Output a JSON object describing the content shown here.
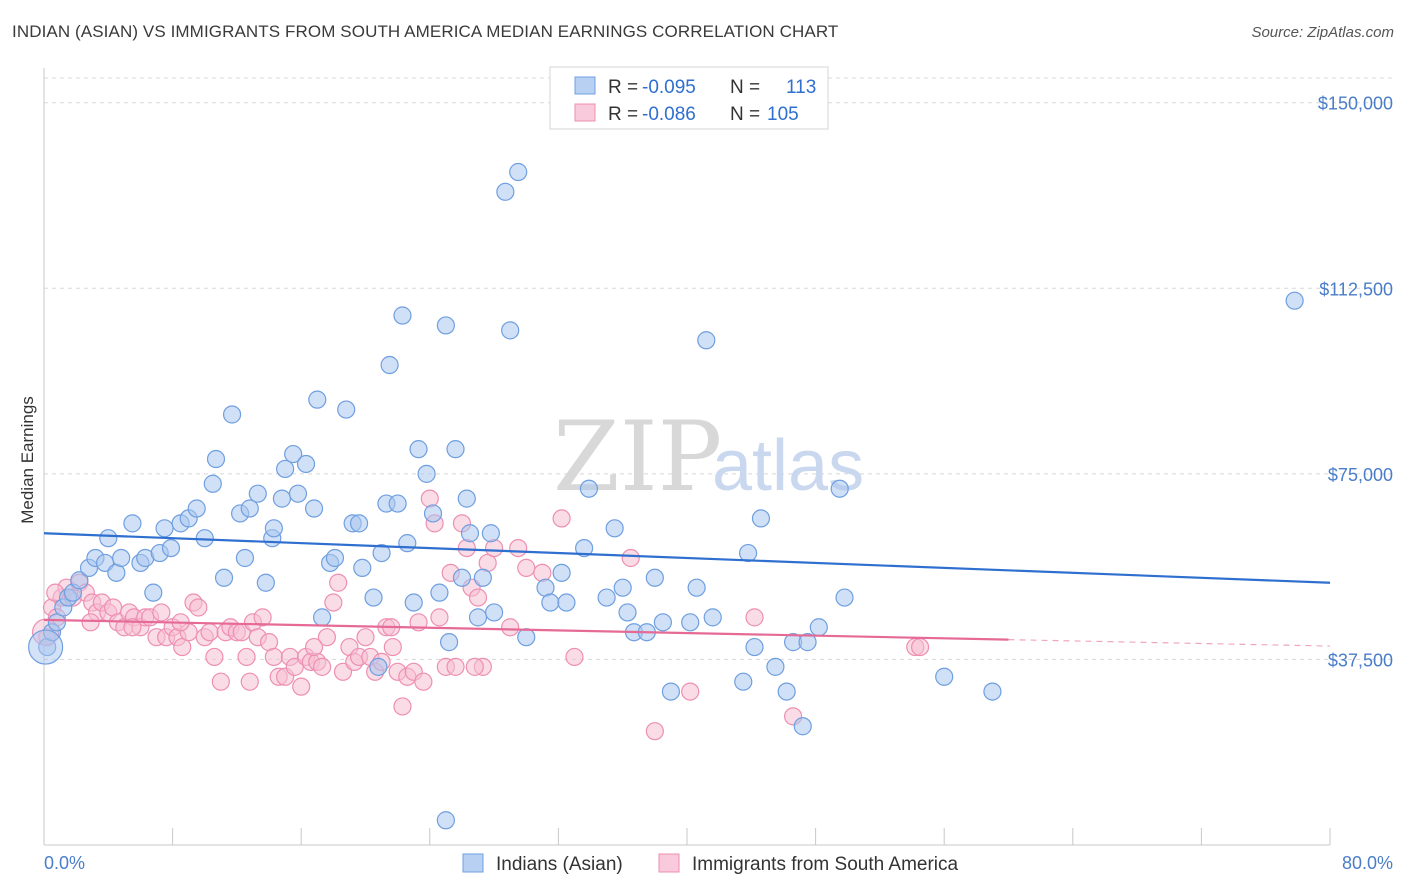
{
  "title": "INDIAN (ASIAN) VS IMMIGRANTS FROM SOUTH AMERICA MEDIAN EARNINGS CORRELATION CHART",
  "source": "Source: ZipAtlas.com",
  "watermark": {
    "zip": "ZIP",
    "atlas": "atlas"
  },
  "colors": {
    "blue_fill": "#a9c6ef",
    "blue_stroke": "#6f9fe0",
    "blue_line": "#2f6fcf",
    "pink_fill": "#f6bfd2",
    "pink_stroke": "#ee8fb2",
    "pink_line": "#e56a96",
    "grid": "#d8d8d8",
    "axis_text": "#4a7dc9"
  },
  "legend": {
    "rows": [
      {
        "r_label": "R =",
        "r_value": "-0.095",
        "n_label": "N =",
        "n_value": "113"
      },
      {
        "r_label": "R =",
        "r_value": "-0.086",
        "n_label": "N =",
        "n_value": "105"
      }
    ]
  },
  "chart_data": {
    "type": "scatter",
    "title": "INDIAN (ASIAN) VS IMMIGRANTS FROM SOUTH AMERICA MEDIAN EARNINGS CORRELATION CHART",
    "xlabel": "",
    "ylabel": "Median Earnings",
    "xlim": [
      0,
      80
    ],
    "ylim": [
      0,
      155000
    ],
    "x_tick_labels": [
      "0.0%",
      "80.0%"
    ],
    "y_ticks": [
      37500,
      75000,
      112500,
      150000
    ],
    "y_tick_labels": [
      "$37,500",
      "$75,000",
      "$112,500",
      "$150,000"
    ],
    "grid": true,
    "legend_position": "top-center",
    "series": [
      {
        "name": "Indians (Asian)",
        "color": "#6f9fe0",
        "trend": {
          "x": [
            0,
            80
          ],
          "y": [
            63000,
            53000
          ]
        },
        "points": [
          [
            0.2,
            40000
          ],
          [
            0.5,
            43000
          ],
          [
            0.8,
            45000
          ],
          [
            1.2,
            48000
          ],
          [
            1.5,
            50000
          ],
          [
            1.8,
            51000
          ],
          [
            2.2,
            53500
          ],
          [
            2.8,
            56000
          ],
          [
            3.2,
            58000
          ],
          [
            3.8,
            57000
          ],
          [
            4.0,
            62000
          ],
          [
            4.5,
            55000
          ],
          [
            4.8,
            58000
          ],
          [
            5.5,
            65000
          ],
          [
            6.0,
            57000
          ],
          [
            6.3,
            58000
          ],
          [
            6.8,
            51000
          ],
          [
            7.2,
            59000
          ],
          [
            7.5,
            64000
          ],
          [
            7.9,
            60000
          ],
          [
            8.5,
            65000
          ],
          [
            9.0,
            66000
          ],
          [
            9.5,
            68000
          ],
          [
            10.0,
            62000
          ],
          [
            10.5,
            73000
          ],
          [
            10.7,
            78000
          ],
          [
            11.2,
            54000
          ],
          [
            11.7,
            87000
          ],
          [
            12.2,
            67000
          ],
          [
            12.5,
            58000
          ],
          [
            12.8,
            68000
          ],
          [
            13.3,
            71000
          ],
          [
            13.8,
            53000
          ],
          [
            14.2,
            62000
          ],
          [
            14.3,
            64000
          ],
          [
            14.8,
            70000
          ],
          [
            15.0,
            76000
          ],
          [
            15.5,
            79000
          ],
          [
            15.8,
            71000
          ],
          [
            16.3,
            77000
          ],
          [
            16.8,
            68000
          ],
          [
            17.0,
            90000
          ],
          [
            17.3,
            46000
          ],
          [
            17.8,
            57000
          ],
          [
            18.1,
            58000
          ],
          [
            18.8,
            88000
          ],
          [
            19.2,
            65000
          ],
          [
            19.6,
            65000
          ],
          [
            19.8,
            56000
          ],
          [
            20.5,
            50000
          ],
          [
            20.8,
            36000
          ],
          [
            21.0,
            59000
          ],
          [
            21.3,
            69000
          ],
          [
            21.5,
            97000
          ],
          [
            22.0,
            69000
          ],
          [
            22.3,
            107000
          ],
          [
            22.6,
            61000
          ],
          [
            23.0,
            49000
          ],
          [
            23.3,
            80000
          ],
          [
            23.8,
            75000
          ],
          [
            24.2,
            67000
          ],
          [
            24.6,
            51000
          ],
          [
            25.0,
            105000
          ],
          [
            25.2,
            41000
          ],
          [
            25.6,
            80000
          ],
          [
            26.0,
            54000
          ],
          [
            26.3,
            70000
          ],
          [
            26.5,
            63000
          ],
          [
            27.0,
            46000
          ],
          [
            27.3,
            54000
          ],
          [
            27.8,
            63000
          ],
          [
            28.0,
            47000
          ],
          [
            28.7,
            132000
          ],
          [
            29.0,
            104000
          ],
          [
            29.5,
            136000
          ],
          [
            30.0,
            42000
          ],
          [
            31.2,
            52000
          ],
          [
            31.5,
            49000
          ],
          [
            32.2,
            55000
          ],
          [
            32.5,
            49000
          ],
          [
            33.6,
            60000
          ],
          [
            33.9,
            72000
          ],
          [
            35.0,
            50000
          ],
          [
            35.5,
            64000
          ],
          [
            36.0,
            52000
          ],
          [
            36.3,
            47000
          ],
          [
            36.7,
            43000
          ],
          [
            37.5,
            43000
          ],
          [
            38.0,
            54000
          ],
          [
            38.5,
            45000
          ],
          [
            39.0,
            31000
          ],
          [
            40.2,
            45000
          ],
          [
            40.6,
            52000
          ],
          [
            41.2,
            102000
          ],
          [
            41.6,
            46000
          ],
          [
            43.5,
            33000
          ],
          [
            43.8,
            59000
          ],
          [
            44.2,
            40000
          ],
          [
            44.6,
            66000
          ],
          [
            45.5,
            36000
          ],
          [
            46.2,
            31000
          ],
          [
            46.6,
            41000
          ],
          [
            47.2,
            24000
          ],
          [
            47.5,
            41000
          ],
          [
            48.2,
            44000
          ],
          [
            49.5,
            72000
          ],
          [
            49.8,
            50000
          ],
          [
            56.0,
            34000
          ],
          [
            59.0,
            31000
          ],
          [
            77.8,
            110000
          ],
          [
            25.0,
            5000
          ]
        ]
      },
      {
        "name": "Immigrants from South America",
        "color": "#ee8fb2",
        "trend": {
          "x": [
            0,
            60
          ],
          "y": [
            45500,
            41500
          ]
        },
        "trend_dashed": {
          "x": [
            60,
            80
          ],
          "y": [
            41500,
            40200
          ]
        },
        "points": [
          [
            0.2,
            42000
          ],
          [
            0.5,
            48000
          ],
          [
            0.8,
            46000
          ],
          [
            1.1,
            50000
          ],
          [
            1.4,
            52000
          ],
          [
            1.8,
            50000
          ],
          [
            2.2,
            53000
          ],
          [
            2.6,
            51000
          ],
          [
            3.0,
            49000
          ],
          [
            3.3,
            47000
          ],
          [
            3.6,
            49000
          ],
          [
            4.0,
            47000
          ],
          [
            4.3,
            48000
          ],
          [
            4.6,
            45000
          ],
          [
            5.0,
            44000
          ],
          [
            5.3,
            47000
          ],
          [
            5.6,
            46000
          ],
          [
            6.0,
            44000
          ],
          [
            6.3,
            46000
          ],
          [
            6.6,
            46000
          ],
          [
            7.0,
            42000
          ],
          [
            7.3,
            47000
          ],
          [
            7.6,
            42000
          ],
          [
            8.0,
            44000
          ],
          [
            8.3,
            42000
          ],
          [
            8.6,
            40000
          ],
          [
            9.0,
            43000
          ],
          [
            9.3,
            49000
          ],
          [
            9.6,
            48000
          ],
          [
            10.0,
            42000
          ],
          [
            10.3,
            43000
          ],
          [
            10.6,
            38000
          ],
          [
            11.0,
            33000
          ],
          [
            11.3,
            43000
          ],
          [
            11.6,
            44000
          ],
          [
            12.0,
            43000
          ],
          [
            12.3,
            43000
          ],
          [
            12.6,
            38000
          ],
          [
            13.0,
            45000
          ],
          [
            13.3,
            42000
          ],
          [
            13.6,
            46000
          ],
          [
            14.0,
            41000
          ],
          [
            14.3,
            38000
          ],
          [
            14.6,
            34000
          ],
          [
            15.0,
            34000
          ],
          [
            15.3,
            38000
          ],
          [
            15.6,
            36000
          ],
          [
            16.0,
            32000
          ],
          [
            16.3,
            38000
          ],
          [
            16.6,
            37000
          ],
          [
            17.0,
            37000
          ],
          [
            17.3,
            36000
          ],
          [
            17.6,
            42000
          ],
          [
            18.0,
            49000
          ],
          [
            18.3,
            53000
          ],
          [
            18.6,
            35000
          ],
          [
            19.0,
            40000
          ],
          [
            19.3,
            37000
          ],
          [
            19.6,
            38000
          ],
          [
            20.0,
            42000
          ],
          [
            20.3,
            38000
          ],
          [
            20.6,
            35000
          ],
          [
            21.0,
            37000
          ],
          [
            21.3,
            44000
          ],
          [
            21.6,
            44000
          ],
          [
            22.0,
            35000
          ],
          [
            22.3,
            28000
          ],
          [
            22.6,
            34000
          ],
          [
            23.0,
            35000
          ],
          [
            23.3,
            45000
          ],
          [
            23.6,
            33000
          ],
          [
            24.0,
            70000
          ],
          [
            24.3,
            65000
          ],
          [
            24.6,
            46000
          ],
          [
            25.0,
            36000
          ],
          [
            25.3,
            55000
          ],
          [
            25.6,
            36000
          ],
          [
            26.0,
            65000
          ],
          [
            26.3,
            60000
          ],
          [
            26.6,
            52000
          ],
          [
            27.0,
            50000
          ],
          [
            27.3,
            36000
          ],
          [
            27.6,
            57000
          ],
          [
            28.0,
            60000
          ],
          [
            29.0,
            44000
          ],
          [
            29.5,
            60000
          ],
          [
            30.0,
            56000
          ],
          [
            31.0,
            55000
          ],
          [
            32.2,
            66000
          ],
          [
            33.0,
            38000
          ],
          [
            36.5,
            58000
          ],
          [
            38.0,
            23000
          ],
          [
            40.2,
            31000
          ],
          [
            44.2,
            46000
          ],
          [
            46.6,
            26000
          ],
          [
            54.2,
            40000
          ],
          [
            54.5,
            40000
          ],
          [
            0.7,
            51000
          ],
          [
            2.9,
            45000
          ],
          [
            5.5,
            44000
          ],
          [
            8.5,
            45000
          ],
          [
            12.8,
            33000
          ],
          [
            16.8,
            40000
          ],
          [
            21.7,
            40000
          ],
          [
            26.8,
            36000
          ]
        ]
      }
    ]
  },
  "bottom_legend": [
    {
      "label": "Indians (Asian)"
    },
    {
      "label": "Immigrants from South America"
    }
  ]
}
